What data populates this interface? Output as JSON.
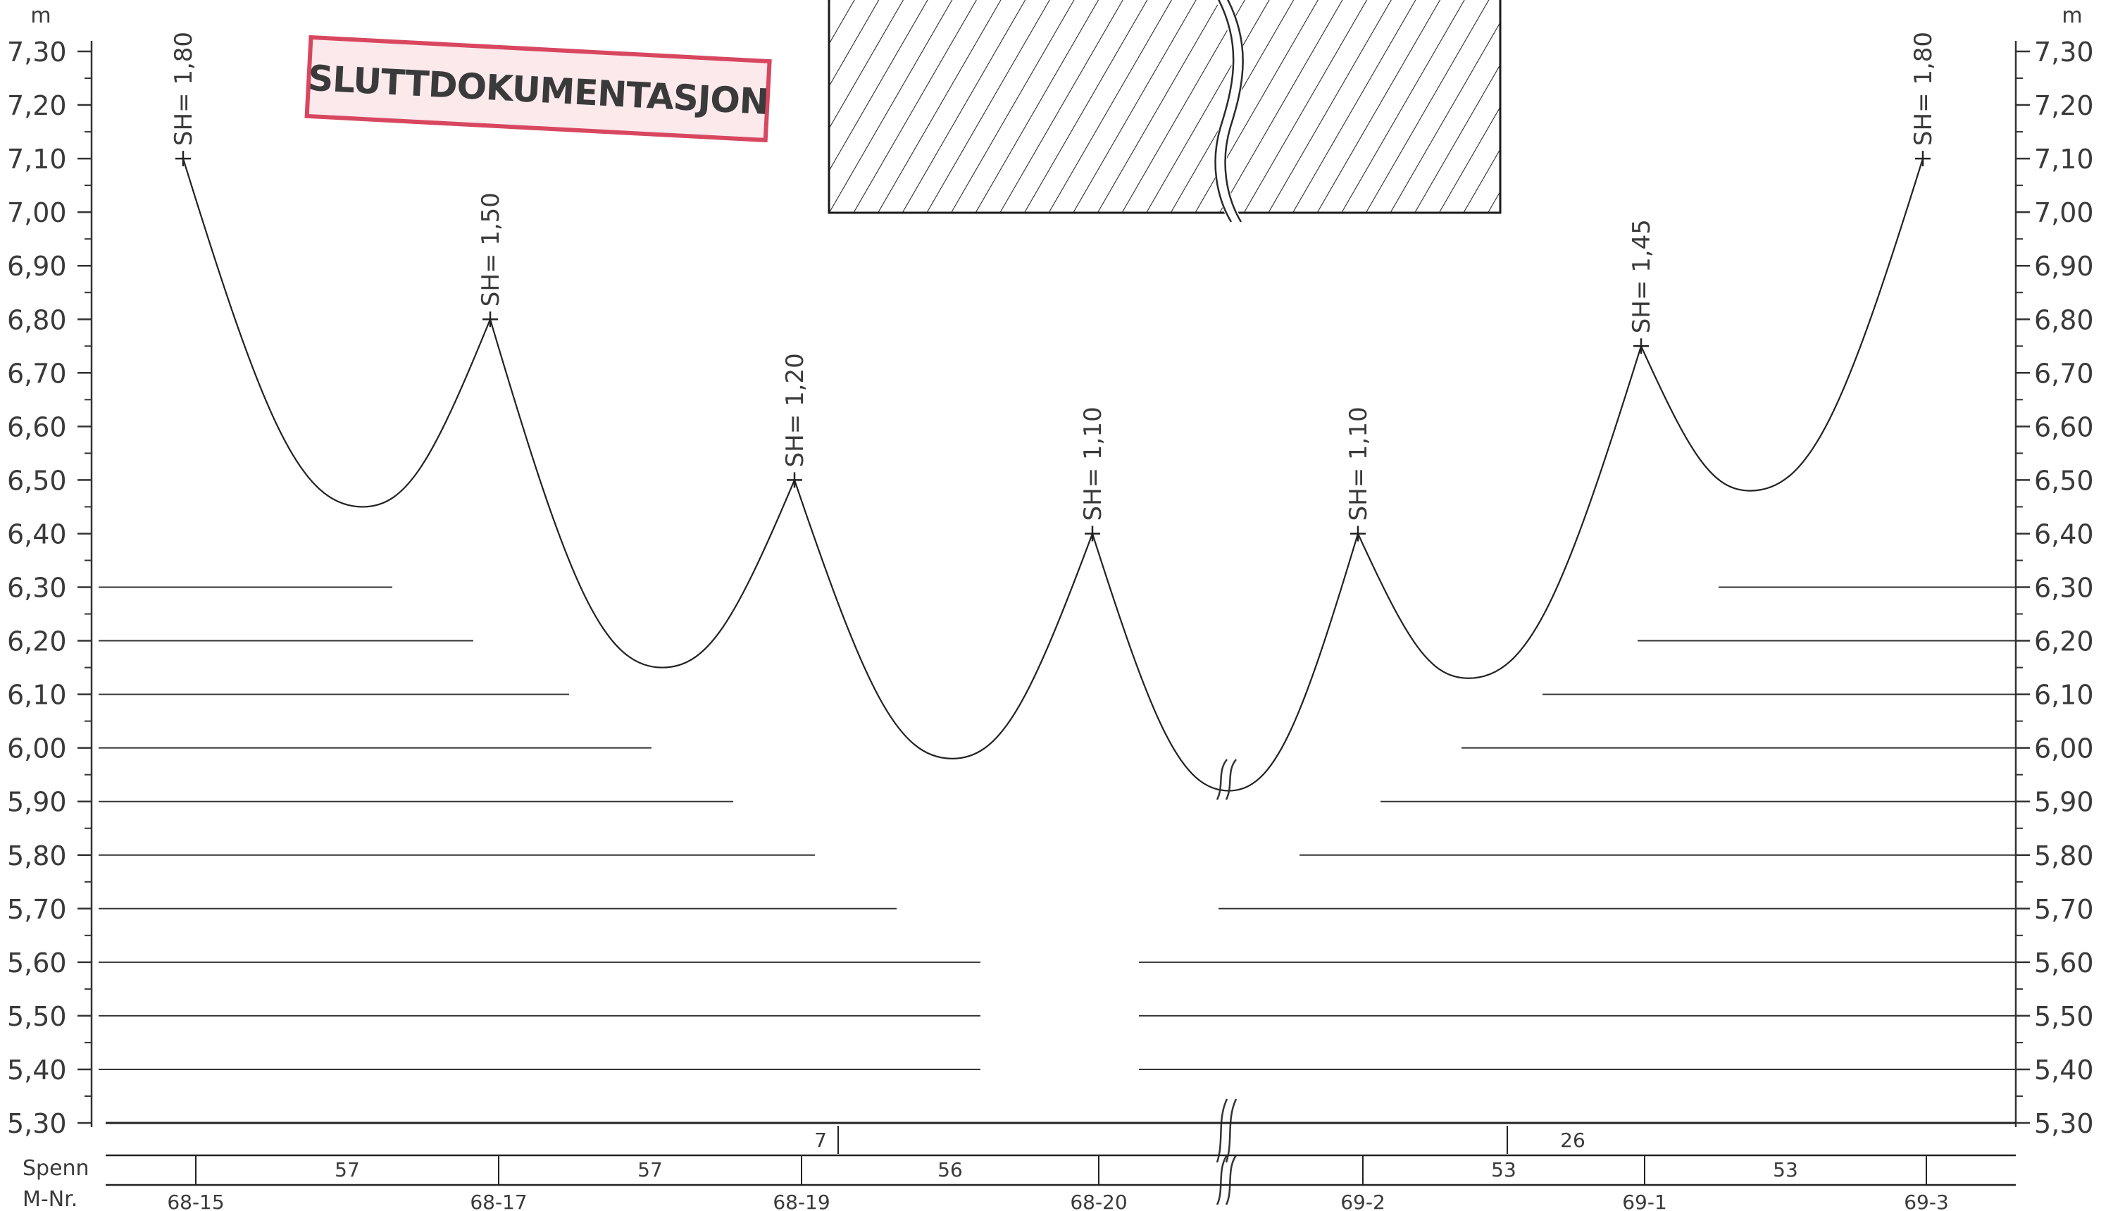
{
  "stamp": {
    "text": "SLUTTDOKUMENTASJON",
    "color": "#d8475f"
  },
  "axis": {
    "unit": "m",
    "ticks": [
      {
        "v": 7.3,
        "label": "7,30"
      },
      {
        "v": 7.2,
        "label": "7,20"
      },
      {
        "v": 7.1,
        "label": "7,10"
      },
      {
        "v": 7.0,
        "label": "7,00"
      },
      {
        "v": 6.9,
        "label": "6,90"
      },
      {
        "v": 6.8,
        "label": "6,80"
      },
      {
        "v": 6.7,
        "label": "6,70"
      },
      {
        "v": 6.6,
        "label": "6,60"
      },
      {
        "v": 6.5,
        "label": "6,50"
      },
      {
        "v": 6.4,
        "label": "6,40"
      },
      {
        "v": 6.3,
        "label": "6,30"
      },
      {
        "v": 6.2,
        "label": "6,20"
      },
      {
        "v": 6.1,
        "label": "6,10"
      },
      {
        "v": 6.0,
        "label": "6,00"
      },
      {
        "v": 5.9,
        "label": "5,90"
      },
      {
        "v": 5.8,
        "label": "5,80"
      },
      {
        "v": 5.7,
        "label": "5,70"
      },
      {
        "v": 5.6,
        "label": "5,60"
      },
      {
        "v": 5.5,
        "label": "5,50"
      },
      {
        "v": 5.4,
        "label": "5,40"
      },
      {
        "v": 5.3,
        "label": "5,30"
      }
    ],
    "range": [
      5.3,
      7.3
    ]
  },
  "masts": [
    {
      "id": "68-15",
      "sh": "1,80",
      "height": 7.1
    },
    {
      "id": "68-17",
      "sh": "1,50",
      "height": 6.8
    },
    {
      "id": "68-19",
      "sh": "1,20",
      "height": 6.5
    },
    {
      "id": "68-20",
      "sh": "1,10",
      "height": 6.4
    },
    {
      "id": "69-2",
      "sh": "1,10",
      "height": 6.4
    },
    {
      "id": "69-1",
      "sh": "1,45",
      "height": 6.75
    },
    {
      "id": "69-3",
      "sh": "1,80",
      "height": 7.1
    }
  ],
  "sags": [
    {
      "low": 6.45
    },
    {
      "low": 6.15
    },
    {
      "low": 5.98
    },
    {
      "low": 5.92
    },
    {
      "low": 6.13
    },
    {
      "low": 6.48
    }
  ],
  "left_clearance_lines": [
    6.3,
    6.2,
    6.1,
    6.0,
    5.9,
    5.8,
    5.7,
    5.6,
    5.5,
    5.4
  ],
  "right_clearance_lines": [
    6.3,
    6.2,
    6.1,
    6.0,
    5.9,
    5.8,
    5.7,
    5.6,
    5.5,
    5.4
  ],
  "table": {
    "row_spenn_label": "Spenn",
    "row_mnr_label": "M-Nr.",
    "spans": [
      "57",
      "57",
      "56",
      "53",
      "53"
    ],
    "extra_marks": [
      "7",
      "26"
    ]
  }
}
